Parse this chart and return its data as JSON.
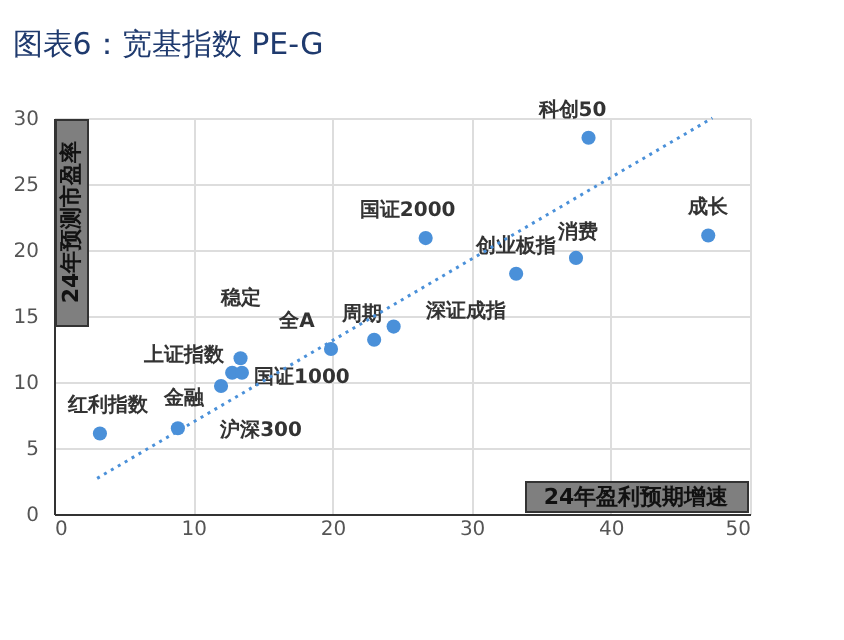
{
  "chart_data": {
    "type": "scatter",
    "title": "图表6：宽基指数 PE-G",
    "xlabel": "24年盈利预期增速",
    "ylabel": "24年预测市盈率",
    "xlim": [
      0,
      50
    ],
    "xticks": [
      0,
      10,
      20,
      30,
      40,
      50
    ],
    "ylim": [
      0,
      30
    ],
    "yticks": [
      0,
      5,
      10,
      15,
      20,
      25,
      30
    ],
    "grid": true,
    "marker": "circle",
    "series": [
      {
        "name": "红利指数",
        "color": "#4a90d9",
        "x": [
          3.3
        ],
        "values": [
          6.1
        ]
      },
      {
        "name": "金融",
        "color": "#4a90d9",
        "x": [
          8.9
        ],
        "values": [
          6.5
        ]
      },
      {
        "name": "沪深300",
        "color": "#4a90d9",
        "x": [
          12.0
        ],
        "values": [
          9.7
        ]
      },
      {
        "name": "上证指数",
        "color": "#4a90d9",
        "x": [
          12.8
        ],
        "values": [
          10.7
        ]
      },
      {
        "name": "国证1000",
        "color": "#4a90d9",
        "x": [
          13.5
        ],
        "values": [
          10.7
        ]
      },
      {
        "name": "稳定",
        "color": "#4a90d9",
        "x": [
          13.4
        ],
        "values": [
          11.8
        ]
      },
      {
        "name": "全A",
        "color": "#4a90d9",
        "x": [
          19.9
        ],
        "values": [
          12.5
        ]
      },
      {
        "name": "周期",
        "color": "#4a90d9",
        "x": [
          23.0
        ],
        "values": [
          13.2
        ]
      },
      {
        "name": "深证成指",
        "color": "#4a90d9",
        "x": [
          24.4
        ],
        "values": [
          14.2
        ]
      },
      {
        "name": "国证2000",
        "color": "#4a90d9",
        "x": [
          26.7
        ],
        "values": [
          20.9
        ]
      },
      {
        "name": "创业板指",
        "color": "#4a90d9",
        "x": [
          33.2
        ],
        "values": [
          18.2
        ]
      },
      {
        "name": "消费",
        "color": "#4a90d9",
        "x": [
          37.5
        ],
        "values": [
          19.4
        ]
      },
      {
        "name": "科创50",
        "color": "#4a90d9",
        "x": [
          38.4
        ],
        "values": [
          28.5
        ]
      },
      {
        "name": "成长",
        "color": "#4a90d9",
        "x": [
          47.0
        ],
        "values": [
          21.1
        ]
      },
      {
        "type": "line",
        "line_style": "dotted",
        "marker": "none",
        "color": "#4a90d9",
        "x": [
          3.1,
          47.3
        ],
        "values": [
          2.7,
          30
        ]
      }
    ]
  }
}
